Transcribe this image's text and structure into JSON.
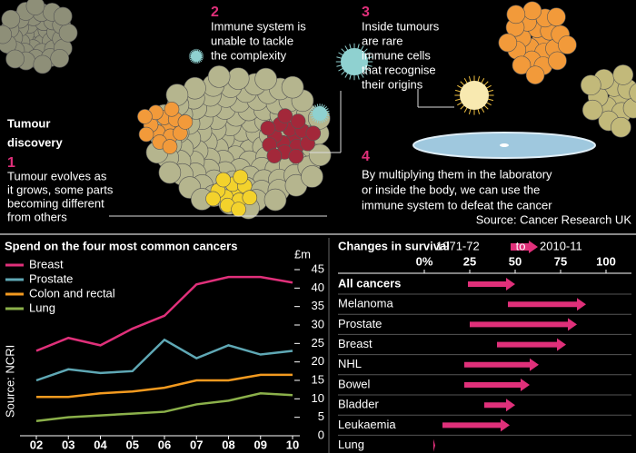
{
  "infographic": {
    "title_lines": [
      "Tumour",
      "discovery"
    ],
    "steps": [
      {
        "number": "1",
        "lines": [
          "Tumour evolves as",
          "it grows, some parts",
          "becoming different",
          "from others"
        ]
      },
      {
        "number": "2",
        "lines": [
          "Immune system is",
          "unable to tackle",
          "the complexity"
        ]
      },
      {
        "number": "3",
        "lines": [
          "Inside tumours",
          "are rare",
          "immune cells",
          "that recognise",
          "their origins"
        ]
      },
      {
        "number": "4",
        "lines": [
          "By multiplying them in the laboratory",
          "or inside the body, we can use the",
          "immune system to defeat the cancer"
        ]
      }
    ],
    "source": "Source: Cancer Research UK"
  },
  "chart_data": [
    {
      "type": "line",
      "title": "Spend on the four most common cancers",
      "y_unit": "£m",
      "source": "Source: NCRI",
      "categories": [
        "02",
        "03",
        "04",
        "05",
        "06",
        "07",
        "08",
        "09",
        "10"
      ],
      "series": [
        {
          "name": "Breast",
          "color": "#e0307a",
          "values": [
            23,
            26.5,
            24.5,
            29,
            32.5,
            41,
            43,
            43,
            41.5
          ]
        },
        {
          "name": "Prostate",
          "color": "#5fa8b5",
          "values": [
            15,
            18,
            17,
            17.5,
            26,
            21,
            24.5,
            22,
            23
          ]
        },
        {
          "name": "Colon and rectal",
          "color": "#f39a1f",
          "values": [
            10.5,
            10.5,
            11.5,
            12,
            13,
            15,
            15,
            16.5,
            16.5
          ]
        },
        {
          "name": "Lung",
          "color": "#8bb04a",
          "values": [
            4,
            5,
            5.5,
            6,
            6.5,
            8.5,
            9.5,
            11.5,
            11
          ]
        }
      ],
      "ylim": [
        0,
        45
      ],
      "yticks": [
        0,
        5,
        10,
        15,
        20,
        25,
        30,
        35,
        40,
        45
      ]
    },
    {
      "type": "range-arrow",
      "title": "Changes in survival",
      "legend_connector": "to",
      "color": "#e0307a",
      "categories": [
        "All cancers",
        "Melanoma",
        "Prostate",
        "Breast",
        "NHL",
        "Bowel",
        "Bladder",
        "Leukaemia",
        "Lung"
      ],
      "series": [
        {
          "name": "1971-72",
          "values": [
            24,
            46,
            25,
            40,
            22,
            22,
            33,
            10,
            5
          ]
        },
        {
          "name": "2010-11",
          "values": [
            50,
            89,
            84,
            78,
            63,
            58,
            50,
            47,
            6
          ]
        }
      ],
      "xlim": [
        0,
        100
      ],
      "xticks": [
        {
          "value": 0,
          "label": "0%"
        },
        25,
        50,
        75,
        100
      ]
    }
  ]
}
